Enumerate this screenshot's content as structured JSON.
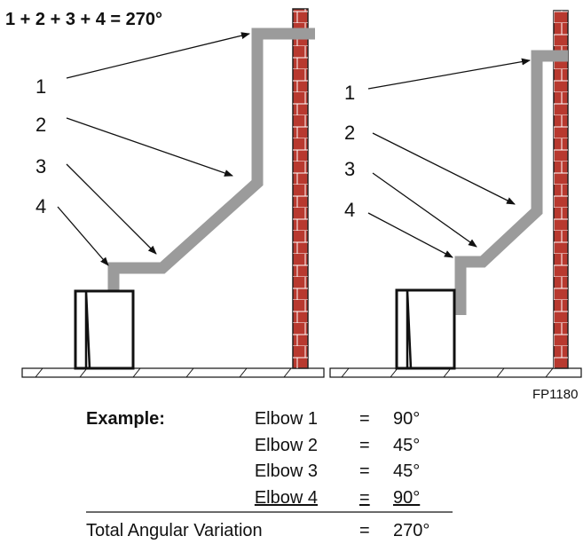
{
  "formula": "1 + 2 + 3 + 4 = 270°",
  "left_labels": [
    "1",
    "2",
    "3",
    "4"
  ],
  "right_labels": [
    "1",
    "2",
    "3",
    "4"
  ],
  "figure_code": "FP1180",
  "example": {
    "heading": "Example:",
    "rows": [
      [
        "Elbow 1",
        "=",
        "90°"
      ],
      [
        "Elbow 2",
        "=",
        "45°"
      ],
      [
        "Elbow 3",
        "=",
        "45°"
      ],
      [
        "Elbow 4",
        "=",
        "90°"
      ]
    ],
    "total": [
      "Total Angular Variation",
      "=",
      "270°"
    ]
  }
}
